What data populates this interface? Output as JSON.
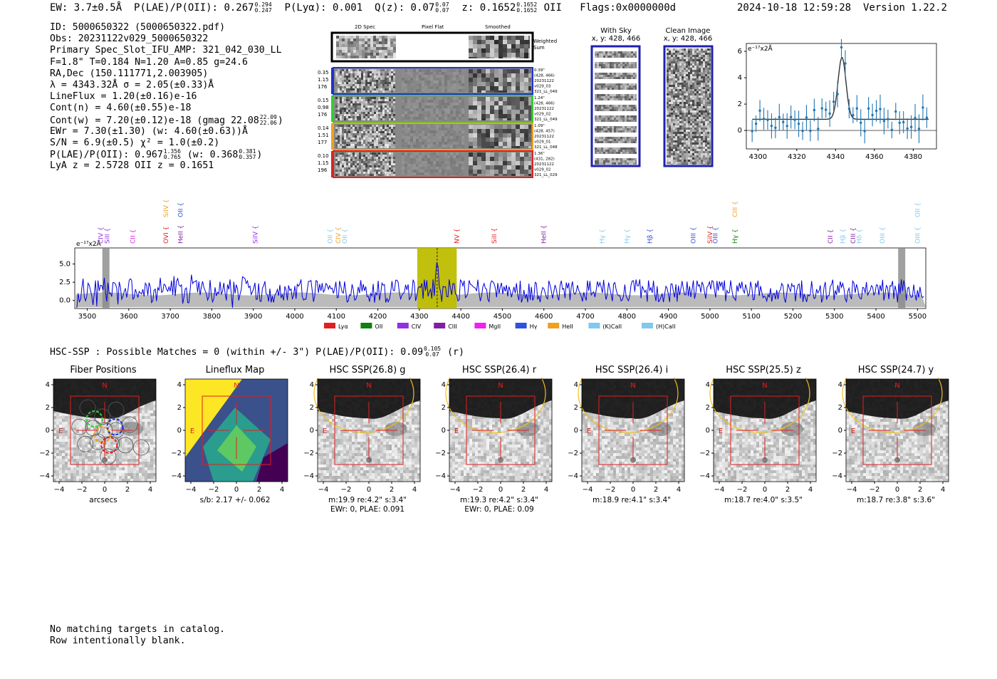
{
  "header": {
    "ew_label": "EW: 3.7±0.5Å",
    "plae_label": "P(LAE)/P(OII): 0.267",
    "plae_hi": "0.294",
    "plae_lo": "0.247",
    "plya_label": "P(Lyα): 0.001",
    "qz_label": "Q(z): 0.07",
    "qz_hi": "0.07",
    "qz_lo": "0.07",
    "z_label": "z: 0.1652",
    "z_hi": "0.1652",
    "z_lo": "0.1652",
    "z_line": "OII",
    "flags": "Flags:0x0000000d",
    "timestamp": "2024-10-18 12:59:28",
    "version": "Version 1.22.2"
  },
  "info": {
    "id": "ID: 5000650322 (5000650322.pdf)",
    "obs": "Obs: 20231122v029_5000650322",
    "primary": "Primary Spec_Slot_IFU_AMP: 321_042_030_LL",
    "params": "F=1.8\"  T=0.184  N=1.20  A=0.85  g=24.6",
    "radec": "RA,Dec (150.111771,2.003905)",
    "lambda": "λ = 4343.32Å  σ = 2.05(±0.33)Å",
    "lineflux": "LineFlux = 1.20(±0.16)e-16",
    "contn": "Cont(n) = 4.60(±0.55)e-18",
    "contw": "Cont(w) = 7.20(±0.12)e-18 (gmag 22.08",
    "gmag_hi": "22.09",
    "gmag_lo": "22.06",
    "contw_end": ")",
    "ewr": "EWr = 7.30(±1.30) (w: 4.60(±0.63))Å",
    "sn": "S/N = 6.9(±0.5)  χ² = 1.0(±0.2)",
    "plae2": "P(LAE)/P(OII): 0.967",
    "plae2_hi": "1.356",
    "plae2_lo": "0.765",
    "plae2_w": "(w: 0.368",
    "plae2_w_hi": "0.381",
    "plae2_w_lo": "0.357",
    "plae2_end": ")",
    "lyaz": "LyA z = 2.5728   OII z = 0.1651"
  },
  "cutouts": {
    "col_2d": "2D Spec",
    "col_flat": "Pixel Flat",
    "col_smooth": "Smoothed",
    "weighted": "Weighted",
    "sum": "Sum",
    "rows": [
      {
        "color": "#2030d0",
        "n1": "0.35",
        "n2": "1.15",
        "n3": "176",
        "r1": "0.39\"",
        "r2": "(428, 466)",
        "r3": "20231122",
        "r4": "v029_03",
        "r5": "321_LL_049"
      },
      {
        "color": "#30d030",
        "n1": "0.15",
        "n2": "0.98",
        "n3": "176",
        "r1": "1.24\"",
        "r2": "(428, 466)",
        "r3": "20231122",
        "r4": "v029_02",
        "r5": "321_LL_049"
      },
      {
        "color": "#f0a020",
        "n1": "0.14",
        "n2": "1.51",
        "n3": "177",
        "r1": "1.09\"",
        "r2": "(428, 457)",
        "r3": "20231122",
        "r4": "v029_01",
        "r5": "321_LL_048"
      },
      {
        "color": "#e02020",
        "n1": "0.10",
        "n2": "1.15",
        "n3": "196",
        "r1": "1.36\"",
        "r2": "(431, 282)",
        "r3": "20231122",
        "r4": "v029_02",
        "r5": "321_LL_029"
      }
    ]
  },
  "sky_panels": {
    "with_sky": "With Sky",
    "clean": "Clean Image",
    "coords": "x, y: 428, 466"
  },
  "zoom_plot": {
    "unit": "e⁻¹⁷x2Å",
    "xlim": [
      4294,
      4392
    ],
    "ylim": [
      -1.4,
      6.6
    ],
    "xticks": [
      "4300",
      "4320",
      "4340",
      "4360",
      "4380"
    ],
    "yticks": [
      "0",
      "2",
      "4",
      "6"
    ]
  },
  "spectrum": {
    "unit": "e⁻¹⁷x2Å",
    "xlim": [
      3470,
      5520
    ],
    "ylim": [
      -1.1,
      7.2
    ],
    "xticks": [
      "3500",
      "3600",
      "3700",
      "3800",
      "3900",
      "4000",
      "4100",
      "4200",
      "4300",
      "4400",
      "4500",
      "4600",
      "4700",
      "4800",
      "4900",
      "5000",
      "5100",
      "5200",
      "5300",
      "5400",
      "5500"
    ],
    "yticks": [
      "5.0",
      "2.5",
      "0.0"
    ],
    "highlight_range": [
      4295,
      4390
    ],
    "line_at": 4343,
    "masks": [
      3545,
      5462
    ],
    "line_markers": [
      {
        "label": "CIV",
        "x": 3533,
        "row": "low",
        "color": "#9030e0"
      },
      {
        "label": "SiII",
        "x": 3548,
        "row": "low",
        "color": "#9030e0"
      },
      {
        "label": "CII",
        "x": 3610,
        "row": "low",
        "color": "#e020e0"
      },
      {
        "label": "SiIV",
        "x": 3690,
        "row": "high",
        "color": "#f0a020"
      },
      {
        "label": "OVI",
        "x": 3690,
        "row": "low",
        "color": "#e02020"
      },
      {
        "label": "OII",
        "x": 3725,
        "row": "high",
        "color": "#3050e0"
      },
      {
        "label": "HeII",
        "x": 3725,
        "row": "low",
        "color": "#8020a0"
      },
      {
        "label": "SiIV",
        "x": 3905,
        "row": "low",
        "color": "#9030e0"
      },
      {
        "label": "OII",
        "x": 4085,
        "row": "low",
        "color": "#80c8f0"
      },
      {
        "label": "CIV",
        "x": 4105,
        "row": "low",
        "color": "#f0a020"
      },
      {
        "label": "OII",
        "x": 4120,
        "row": "low",
        "color": "#80c8f0"
      },
      {
        "label": "NV",
        "x": 4390,
        "row": "low",
        "color": "#e02020"
      },
      {
        "label": "SiII",
        "x": 4480,
        "row": "low",
        "color": "#e02020"
      },
      {
        "label": "HeII",
        "x": 4600,
        "row": "low",
        "color": "#8020a0"
      },
      {
        "label": "Hγ",
        "x": 4740,
        "row": "low",
        "color": "#80c8f0"
      },
      {
        "label": "Hγ",
        "x": 4800,
        "row": "low",
        "color": "#80c8f0"
      },
      {
        "label": "Hβ",
        "x": 4855,
        "row": "low",
        "color": "#3050e0"
      },
      {
        "label": "OIII",
        "x": 4960,
        "row": "low",
        "color": "#3050e0"
      },
      {
        "label": "SiIV",
        "x": 5000,
        "row": "low",
        "color": "#e02020"
      },
      {
        "label": "OIII",
        "x": 5013,
        "row": "low",
        "color": "#3050e0"
      },
      {
        "label": "CIII",
        "x": 5060,
        "row": "high",
        "color": "#f0a020"
      },
      {
        "label": "Hγ",
        "x": 5060,
        "row": "low",
        "color": "#108010"
      },
      {
        "label": "CII",
        "x": 5290,
        "row": "low",
        "color": "#8020a0"
      },
      {
        "label": "Hβ",
        "x": 5320,
        "row": "low",
        "color": "#80c8f0"
      },
      {
        "label": "CIII",
        "x": 5345,
        "row": "low",
        "color": "#8020a0"
      },
      {
        "label": "Hδ",
        "x": 5360,
        "row": "low",
        "color": "#80c8f0"
      },
      {
        "label": "OIII",
        "x": 5415,
        "row": "low",
        "color": "#80c8f0"
      },
      {
        "label": "OII",
        "x": 5500,
        "row": "high",
        "color": "#80c8f0"
      },
      {
        "label": "OIII",
        "x": 5500,
        "row": "low",
        "color": "#80c8f0"
      }
    ],
    "legend": [
      {
        "label": "Lyα",
        "color": "#e02020"
      },
      {
        "label": "OII",
        "color": "#108010"
      },
      {
        "label": "CIV",
        "color": "#9030e0"
      },
      {
        "label": "CIII",
        "color": "#8020a0"
      },
      {
        "label": "MgII",
        "color": "#f020f0"
      },
      {
        "label": "Hγ",
        "color": "#3050e0"
      },
      {
        "label": "HeII",
        "color": "#f0a020"
      },
      {
        "label": "(K)CaII",
        "color": "#80c8f0"
      },
      {
        "label": "(H)CaII",
        "color": "#80c8f0"
      }
    ]
  },
  "hsc": {
    "line": "HSC-SSP : Possible Matches = 0 (within +/- 3\")  P(LAE)/P(OII): 0.09",
    "hi": "0.105",
    "lo": "0.07",
    "band": "(r)"
  },
  "panels": [
    {
      "title": "Fiber Positions",
      "cap1": "arcsecs",
      "cap2": "",
      "type": "fiber"
    },
    {
      "title": "Lineflux Map",
      "cap1": "s/b: 2.17 +/- 0.062",
      "cap2": "",
      "type": "lineflux"
    },
    {
      "title": "HSC SSP(26.8) g",
      "cap1": "m:19.9  re:4.2\"  s:3.4\"",
      "cap2": "EWr: 0, PLAE: 0.091",
      "type": "hsc"
    },
    {
      "title": "HSC SSP(26.4) r",
      "cap1": "m:19.3  re:4.2\"  s:3.4\"",
      "cap2": "EWr: 0, PLAE: 0.09",
      "type": "hsc"
    },
    {
      "title": "HSC SSP(26.4) i",
      "cap1": "m:18.9  re:4.1\"  s:3.4\"",
      "cap2": "",
      "type": "hsc"
    },
    {
      "title": "HSC SSP(25.5) z",
      "cap1": "m:18.7  re:4.0\"  s:3.5\"",
      "cap2": "",
      "type": "hsc"
    },
    {
      "title": "HSC SSP(24.7) y",
      "cap1": "m:18.7  re:3.8\"  s:3.6\"",
      "cap2": "",
      "type": "hsc"
    }
  ],
  "panel_ticks": {
    "x": [
      "−4",
      "−2",
      "0",
      "2",
      "4"
    ],
    "y": [
      "4",
      "2",
      "0",
      "−2",
      "−4"
    ],
    "north": "N",
    "east": "E"
  },
  "footer": {
    "line1": "No matching targets in catalog.",
    "line2": "Row intentionally blank."
  }
}
